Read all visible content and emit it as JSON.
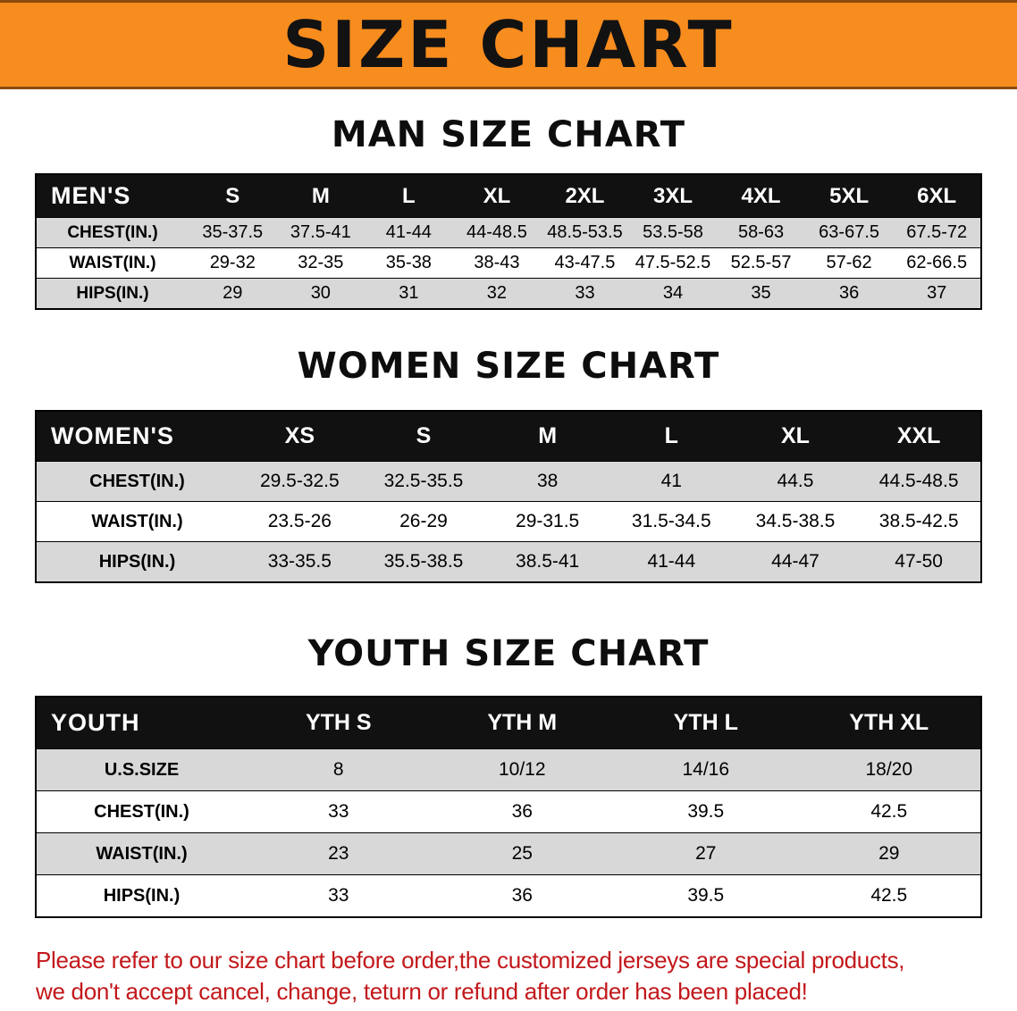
{
  "banner": {
    "title": "SIZE CHART"
  },
  "colors": {
    "banner_orange": "#f78c1f",
    "banner_stripe_brown": "#8a4a10",
    "table_header_black": "#111111",
    "row_shade_gray": "#d8d8d8",
    "disclaimer_red": "#c2181b"
  },
  "men": {
    "heading": "MAN SIZE CHART",
    "table": {
      "corner_label": "MEN'S",
      "columns": [
        "S",
        "M",
        "L",
        "XL",
        "2XL",
        "3XL",
        "4XL",
        "5XL",
        "6XL"
      ],
      "rows": [
        {
          "label": "CHEST(IN.)",
          "values": [
            "35-37.5",
            "37.5-41",
            "41-44",
            "44-48.5",
            "48.5-53.5",
            "53.5-58",
            "58-63",
            "63-67.5",
            "67.5-72"
          ]
        },
        {
          "label": "WAIST(IN.)",
          "values": [
            "29-32",
            "32-35",
            "35-38",
            "38-43",
            "43-47.5",
            "47.5-52.5",
            "52.5-57",
            "57-62",
            "62-66.5"
          ]
        },
        {
          "label": "HIPS(IN.)",
          "values": [
            "29",
            "30",
            "31",
            "32",
            "33",
            "34",
            "35",
            "36",
            "37"
          ]
        }
      ]
    }
  },
  "women": {
    "heading": "WOMEN SIZE CHART",
    "table": {
      "corner_label": "WOMEN'S",
      "columns": [
        "XS",
        "S",
        "M",
        "L",
        "XL",
        "XXL"
      ],
      "rows": [
        {
          "label": "CHEST(IN.)",
          "values": [
            "29.5-32.5",
            "32.5-35.5",
            "38",
            "41",
            "44.5",
            "44.5-48.5"
          ]
        },
        {
          "label": "WAIST(IN.)",
          "values": [
            "23.5-26",
            "26-29",
            "29-31.5",
            "31.5-34.5",
            "34.5-38.5",
            "38.5-42.5"
          ]
        },
        {
          "label": "HIPS(IN.)",
          "values": [
            "33-35.5",
            "35.5-38.5",
            "38.5-41",
            "41-44",
            "44-47",
            "47-50"
          ]
        }
      ]
    }
  },
  "youth": {
    "heading": "YOUTH SIZE CHART",
    "table": {
      "corner_label": "YOUTH",
      "columns": [
        "YTH S",
        "YTH M",
        "YTH L",
        "YTH XL"
      ],
      "rows": [
        {
          "label": "U.S.SIZE",
          "values": [
            "8",
            "10/12",
            "14/16",
            "18/20"
          ]
        },
        {
          "label": "CHEST(IN.)",
          "values": [
            "33",
            "36",
            "39.5",
            "42.5"
          ]
        },
        {
          "label": "WAIST(IN.)",
          "values": [
            "23",
            "25",
            "27",
            "29"
          ]
        },
        {
          "label": "HIPS(IN.)",
          "values": [
            "33",
            "36",
            "39.5",
            "42.5"
          ]
        }
      ]
    }
  },
  "disclaimer": {
    "line1": "Please refer to our size chart before order,the customized jerseys are special products,",
    "line2": "we don't accept cancel, change, teturn or refund after order has been placed!"
  }
}
